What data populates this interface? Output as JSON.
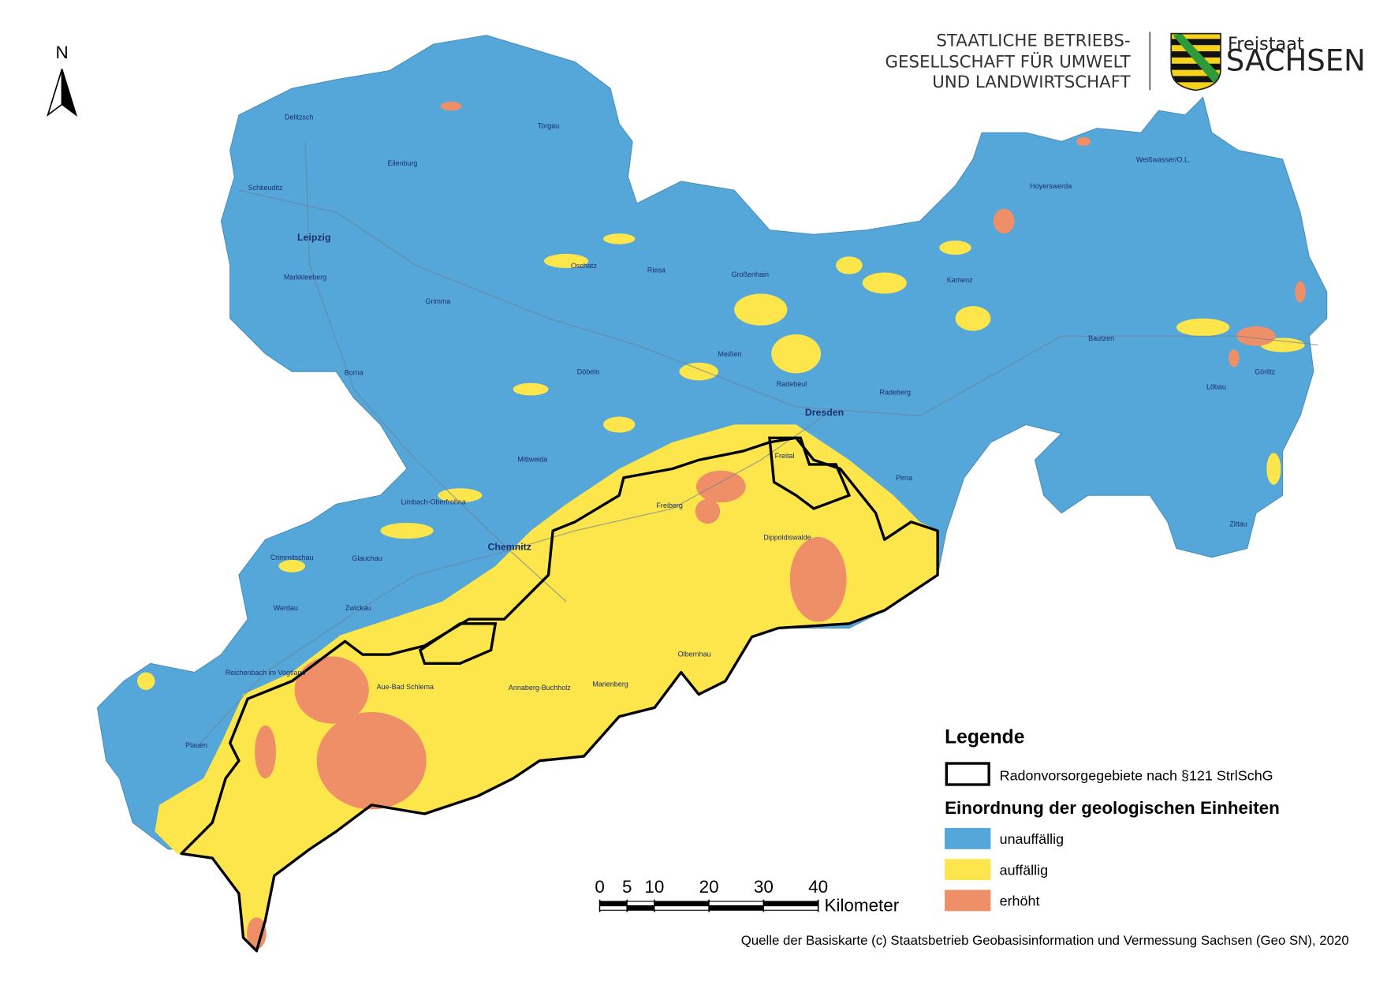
{
  "north_arrow": "N",
  "header": {
    "agency_lines": [
      "STAATLICHE BETRIEBS-",
      "GESELLSCHAFT FÜR UMWELT",
      "UND LANDWIRTSCHAFT"
    ],
    "state_small": "Freistaat",
    "state_large": "SACHSEN"
  },
  "map": {
    "places": [
      "Delitzsch",
      "Torgau",
      "Eilenburg",
      "Schkeuditz",
      "Leipzig",
      "Markkleeberg",
      "Grimma",
      "Borna",
      "Oschatz",
      "Riesa",
      "Großenhain",
      "Meißen",
      "Radebeul",
      "Dresden",
      "Freital",
      "Pirna",
      "Radeberg",
      "Kamenz",
      "Hoyerswerda",
      "Weißwasser/O.L.",
      "Bautzen",
      "Löbau",
      "Görlitz",
      "Zittau",
      "Döbeln",
      "Mittweida",
      "Freiberg",
      "Dippoldiswalde",
      "Chemnitz",
      "Limbach-Oberfrohna",
      "Glauchau",
      "Crimmitschau",
      "Werdau",
      "Zwickau",
      "Reichenbach im Vogtland",
      "Plauen",
      "Aue-Bad Schlema",
      "Annaberg-Buchholz",
      "Marienberg",
      "Olbernhau"
    ]
  },
  "legend": {
    "title": "Legende",
    "boundary_label": "Radonvorsorgegebiete nach §121 StrlSchG",
    "boundary_color": "#000000",
    "classes_title": "Einordnung der geologischen Einheiten",
    "classes": [
      {
        "label": "unauffällig",
        "color": "#55a7d9"
      },
      {
        "label": "auffällig",
        "color": "#fde64b"
      },
      {
        "label": "erhöht",
        "color": "#ef8f68"
      }
    ]
  },
  "scale_bar": {
    "ticks": [
      0,
      5,
      10,
      20,
      30,
      40
    ],
    "unit": "Kilometer"
  },
  "source": "Quelle der Basiskarte (c) Staatsbetrieb Geobasisinformation und Vermessung Sachsen (Geo SN), 2020"
}
